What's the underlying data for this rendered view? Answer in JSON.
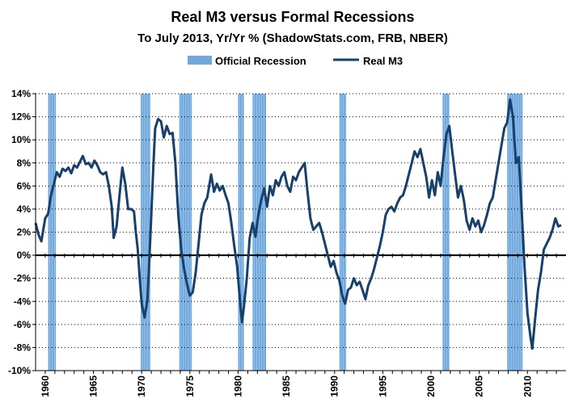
{
  "chart_data": {
    "type": "line",
    "title": "Real M3 versus Formal Recessions",
    "subtitle": "To July 2013, Yr/Yr % (ShadowStats.com, FRB, NBER)",
    "xlabel": "",
    "ylabel": "",
    "xlim": [
      1960,
      2014
    ],
    "ylim": [
      -10,
      14
    ],
    "y_ticks": [
      -10,
      -8,
      -6,
      -4,
      -2,
      0,
      2,
      4,
      6,
      8,
      10,
      12,
      14
    ],
    "y_tick_labels": [
      "-10%",
      "-8%",
      "-6%",
      "-4%",
      "-2%",
      "0%",
      "2%",
      "4%",
      "6%",
      "8%",
      "10%",
      "12%",
      "14%"
    ],
    "x_ticks": [
      1960,
      1965,
      1970,
      1975,
      1980,
      1985,
      1990,
      1995,
      2000,
      2005,
      2010
    ],
    "x_tick_labels": [
      "1960",
      "1965",
      "1970",
      "1975",
      "1980",
      "1985",
      "1990",
      "1995",
      "2000",
      "2005",
      "2010"
    ],
    "grid": "horizontal",
    "legend": {
      "position": "top",
      "entries": [
        {
          "label": "Official Recession",
          "kind": "band"
        },
        {
          "label": "Real M3",
          "kind": "line"
        }
      ]
    },
    "colors": {
      "line": "#17406d",
      "recession": "#6fa8dc",
      "zero_line": "#000000",
      "grid": "#000000"
    },
    "recessions": [
      {
        "start": 1960.3,
        "end": 1961.1
      },
      {
        "start": 1969.9,
        "end": 1970.9
      },
      {
        "start": 1973.9,
        "end": 1975.2
      },
      {
        "start": 1980.0,
        "end": 1980.6
      },
      {
        "start": 1981.5,
        "end": 1982.9
      },
      {
        "start": 1990.5,
        "end": 1991.2
      },
      {
        "start": 2001.2,
        "end": 2001.9
      },
      {
        "start": 2007.9,
        "end": 2009.5
      }
    ],
    "series": [
      {
        "name": "Real M3",
        "points": [
          [
            1959.0,
            2.8
          ],
          [
            1959.3,
            1.8
          ],
          [
            1959.6,
            1.2
          ],
          [
            1959.8,
            2.2
          ],
          [
            1960.0,
            3.2
          ],
          [
            1960.3,
            3.6
          ],
          [
            1960.6,
            5.2
          ],
          [
            1960.9,
            6.2
          ],
          [
            1961.2,
            7.2
          ],
          [
            1961.5,
            6.8
          ],
          [
            1961.8,
            7.5
          ],
          [
            1962.1,
            7.3
          ],
          [
            1962.4,
            7.6
          ],
          [
            1962.7,
            7.1
          ],
          [
            1963.0,
            7.8
          ],
          [
            1963.3,
            7.6
          ],
          [
            1963.6,
            8.1
          ],
          [
            1963.9,
            8.6
          ],
          [
            1964.2,
            7.9
          ],
          [
            1964.5,
            8.0
          ],
          [
            1964.8,
            7.6
          ],
          [
            1965.1,
            8.2
          ],
          [
            1965.4,
            7.8
          ],
          [
            1965.7,
            7.2
          ],
          [
            1966.0,
            7.0
          ],
          [
            1966.3,
            7.2
          ],
          [
            1966.6,
            6.0
          ],
          [
            1966.9,
            4.2
          ],
          [
            1967.1,
            1.5
          ],
          [
            1967.4,
            2.5
          ],
          [
            1967.7,
            5.2
          ],
          [
            1968.0,
            7.6
          ],
          [
            1968.3,
            6.2
          ],
          [
            1968.6,
            4.0
          ],
          [
            1968.9,
            4.0
          ],
          [
            1969.2,
            3.8
          ],
          [
            1969.4,
            2.0
          ],
          [
            1969.6,
            0.5
          ],
          [
            1969.8,
            -2.0
          ],
          [
            1970.0,
            -4.2
          ],
          [
            1970.3,
            -5.4
          ],
          [
            1970.6,
            -3.8
          ],
          [
            1970.9,
            1.5
          ],
          [
            1971.2,
            7.5
          ],
          [
            1971.4,
            11.0
          ],
          [
            1971.7,
            11.8
          ],
          [
            1972.0,
            11.6
          ],
          [
            1972.3,
            10.2
          ],
          [
            1972.6,
            11.2
          ],
          [
            1972.9,
            10.5
          ],
          [
            1973.2,
            10.6
          ],
          [
            1973.5,
            8.0
          ],
          [
            1973.8,
            3.5
          ],
          [
            1974.1,
            0.5
          ],
          [
            1974.4,
            -1.2
          ],
          [
            1974.7,
            -2.5
          ],
          [
            1975.0,
            -3.5
          ],
          [
            1975.3,
            -3.2
          ],
          [
            1975.6,
            -1.5
          ],
          [
            1975.9,
            1.0
          ],
          [
            1976.2,
            3.5
          ],
          [
            1976.5,
            4.5
          ],
          [
            1976.8,
            5.0
          ],
          [
            1977.0,
            6.0
          ],
          [
            1977.2,
            7.0
          ],
          [
            1977.5,
            5.5
          ],
          [
            1977.8,
            6.2
          ],
          [
            1978.1,
            5.6
          ],
          [
            1978.4,
            6.0
          ],
          [
            1978.7,
            5.2
          ],
          [
            1979.0,
            4.5
          ],
          [
            1979.3,
            2.8
          ],
          [
            1979.6,
            0.8
          ],
          [
            1979.9,
            -1.0
          ],
          [
            1980.2,
            -4.0
          ],
          [
            1980.4,
            -5.8
          ],
          [
            1980.6,
            -4.5
          ],
          [
            1980.9,
            -2.0
          ],
          [
            1981.2,
            1.5
          ],
          [
            1981.5,
            2.8
          ],
          [
            1981.8,
            1.6
          ],
          [
            1982.1,
            3.5
          ],
          [
            1982.4,
            4.8
          ],
          [
            1982.7,
            5.8
          ],
          [
            1983.0,
            4.2
          ],
          [
            1983.3,
            6.0
          ],
          [
            1983.6,
            5.2
          ],
          [
            1983.9,
            6.5
          ],
          [
            1984.2,
            6.0
          ],
          [
            1984.5,
            6.8
          ],
          [
            1984.8,
            7.2
          ],
          [
            1985.1,
            6.0
          ],
          [
            1985.4,
            5.5
          ],
          [
            1985.7,
            6.8
          ],
          [
            1986.0,
            6.5
          ],
          [
            1986.3,
            7.2
          ],
          [
            1986.6,
            7.6
          ],
          [
            1986.9,
            8.0
          ],
          [
            1987.2,
            5.5
          ],
          [
            1987.5,
            3.2
          ],
          [
            1987.8,
            2.2
          ],
          [
            1988.1,
            2.5
          ],
          [
            1988.4,
            2.8
          ],
          [
            1988.7,
            2.0
          ],
          [
            1989.0,
            1.0
          ],
          [
            1989.3,
            0.0
          ],
          [
            1989.6,
            -1.0
          ],
          [
            1989.9,
            -0.5
          ],
          [
            1990.2,
            -1.5
          ],
          [
            1990.5,
            -2.2
          ],
          [
            1990.8,
            -3.5
          ],
          [
            1991.1,
            -4.2
          ],
          [
            1991.4,
            -3.0
          ],
          [
            1991.7,
            -2.8
          ],
          [
            1992.0,
            -2.0
          ],
          [
            1992.3,
            -2.6
          ],
          [
            1992.6,
            -2.3
          ],
          [
            1992.9,
            -3.0
          ],
          [
            1993.2,
            -3.8
          ],
          [
            1993.5,
            -2.6
          ],
          [
            1993.8,
            -2.0
          ],
          [
            1994.1,
            -1.2
          ],
          [
            1994.4,
            -0.2
          ],
          [
            1994.7,
            0.8
          ],
          [
            1995.0,
            2.0
          ],
          [
            1995.3,
            3.5
          ],
          [
            1995.6,
            4.0
          ],
          [
            1995.9,
            4.2
          ],
          [
            1996.2,
            3.8
          ],
          [
            1996.5,
            4.5
          ],
          [
            1996.8,
            5.0
          ],
          [
            1997.1,
            5.2
          ],
          [
            1997.4,
            6.0
          ],
          [
            1997.7,
            7.0
          ],
          [
            1998.0,
            8.0
          ],
          [
            1998.3,
            9.0
          ],
          [
            1998.6,
            8.5
          ],
          [
            1998.9,
            9.2
          ],
          [
            1999.2,
            8.0
          ],
          [
            1999.5,
            6.8
          ],
          [
            1999.8,
            5.0
          ],
          [
            2000.1,
            6.5
          ],
          [
            2000.4,
            5.2
          ],
          [
            2000.7,
            7.2
          ],
          [
            2001.0,
            6.0
          ],
          [
            2001.3,
            8.5
          ],
          [
            2001.6,
            10.5
          ],
          [
            2001.9,
            11.2
          ],
          [
            2002.2,
            9.0
          ],
          [
            2002.5,
            7.0
          ],
          [
            2002.8,
            5.0
          ],
          [
            2003.1,
            6.0
          ],
          [
            2003.4,
            4.8
          ],
          [
            2003.7,
            3.0
          ],
          [
            2004.0,
            2.2
          ],
          [
            2004.3,
            3.2
          ],
          [
            2004.6,
            2.5
          ],
          [
            2004.9,
            3.0
          ],
          [
            2005.2,
            2.0
          ],
          [
            2005.5,
            2.6
          ],
          [
            2005.8,
            3.5
          ],
          [
            2006.1,
            4.5
          ],
          [
            2006.4,
            5.0
          ],
          [
            2006.7,
            6.5
          ],
          [
            2007.0,
            8.0
          ],
          [
            2007.3,
            9.5
          ],
          [
            2007.6,
            11.0
          ],
          [
            2007.9,
            11.5
          ],
          [
            2008.2,
            13.5
          ],
          [
            2008.5,
            12.0
          ],
          [
            2008.8,
            8.0
          ],
          [
            2009.1,
            8.5
          ],
          [
            2009.4,
            4.0
          ],
          [
            2009.7,
            -1.0
          ],
          [
            2010.0,
            -5.0
          ],
          [
            2010.3,
            -7.0
          ],
          [
            2010.5,
            -8.1
          ],
          [
            2010.8,
            -5.5
          ],
          [
            2011.1,
            -3.0
          ],
          [
            2011.4,
            -1.5
          ],
          [
            2011.7,
            0.5
          ],
          [
            2012.0,
            1.0
          ],
          [
            2012.3,
            1.5
          ],
          [
            2012.6,
            2.2
          ],
          [
            2012.9,
            3.2
          ],
          [
            2013.2,
            2.5
          ],
          [
            2013.5,
            2.6
          ]
        ]
      }
    ]
  }
}
